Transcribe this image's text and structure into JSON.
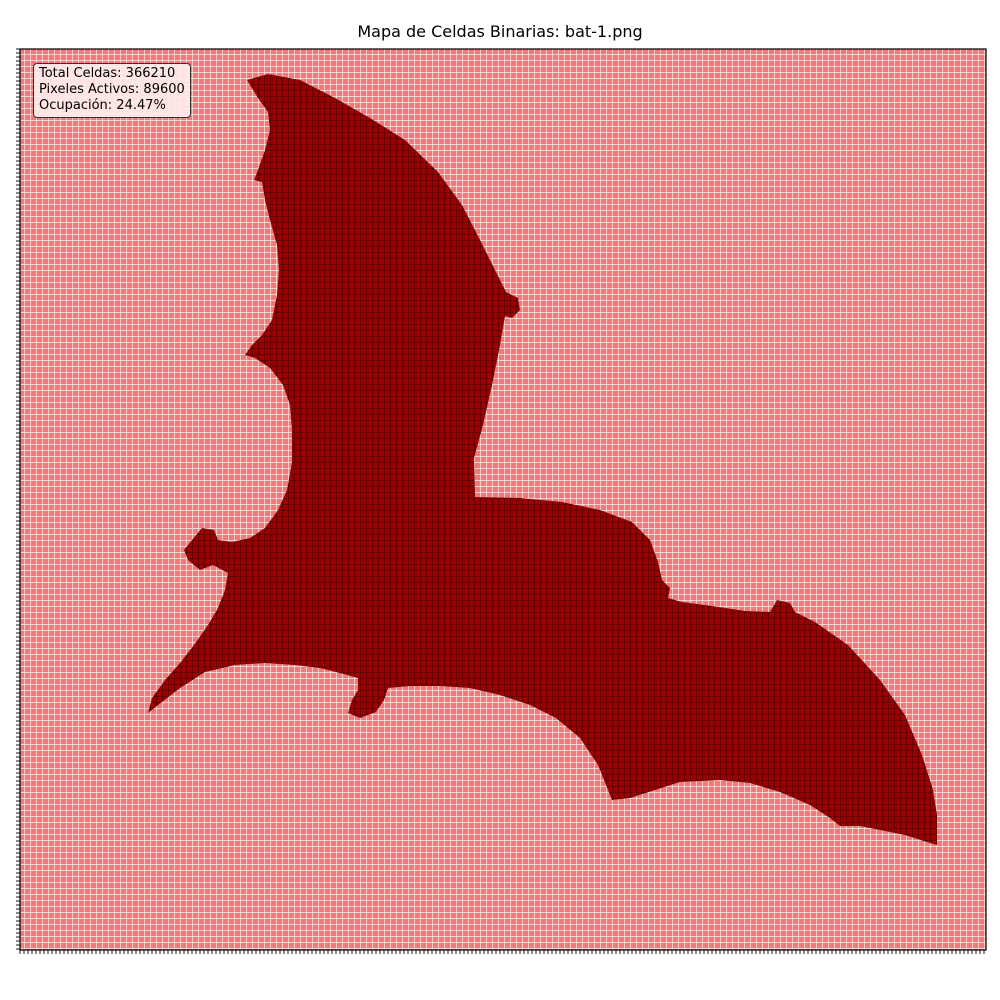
{
  "chart_data": {
    "type": "heatmap",
    "title": "Mapa de Celdas Binarias: bat-1.png",
    "xlabel": "",
    "ylabel": "",
    "cell_states": [
      "inactive",
      "active"
    ],
    "colors": {
      "inactive": "#f07a7a",
      "active": "#990000",
      "grid_line": "#ffffff",
      "active_grid_line": "#2a0000",
      "axis": "#000000"
    },
    "grid": true,
    "legend": "none",
    "stats": {
      "total_celdas": "Total Celdas: 366210",
      "pixeles_activos": "Pixeles Activos: 89600",
      "ocupacion": "Ocupación: 24.47%"
    }
  }
}
